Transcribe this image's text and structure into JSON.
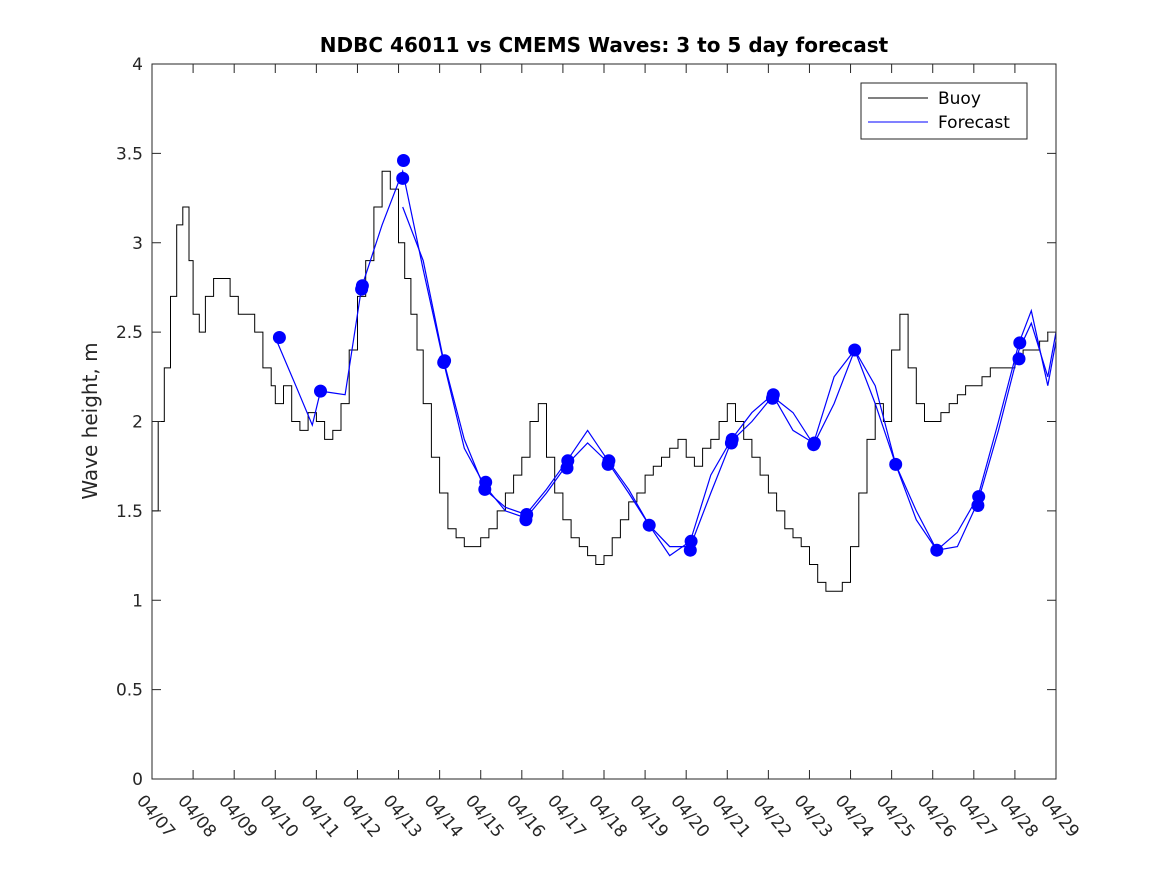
{
  "chart_data": {
    "type": "line",
    "title": "NDBC 46011 vs CMEMS Waves: 3 to 5 day forecast",
    "xlabel": "",
    "ylabel": "Wave height, m",
    "xlim": [
      "04/07",
      "04/29"
    ],
    "ylim": [
      0,
      4
    ],
    "yticks": [
      "0",
      "0.5",
      "1",
      "1.5",
      "2",
      "2.5",
      "3",
      "3.5",
      "4"
    ],
    "xticks": [
      "04/07",
      "04/08",
      "04/09",
      "04/10",
      "04/11",
      "04/12",
      "04/13",
      "04/14",
      "04/15",
      "04/16",
      "04/17",
      "04/18",
      "04/19",
      "04/20",
      "04/21",
      "04/22",
      "04/23",
      "04/24",
      "04/25",
      "04/26",
      "04/27",
      "04/28",
      "04/29"
    ],
    "legend_position": "top-right",
    "grid": false,
    "colors": {
      "buoy": "#000000",
      "forecast": "#0000ff"
    },
    "series": [
      {
        "name": "Buoy",
        "x_days": [
          0,
          0.15,
          0.3,
          0.45,
          0.6,
          0.75,
          0.9,
          1.0,
          1.15,
          1.3,
          1.5,
          1.7,
          1.9,
          2.1,
          2.3,
          2.5,
          2.7,
          2.9,
          3.0,
          3.2,
          3.4,
          3.6,
          3.8,
          4.0,
          4.2,
          4.4,
          4.6,
          4.8,
          5.0,
          5.2,
          5.4,
          5.6,
          5.8,
          6.0,
          6.15,
          6.3,
          6.45,
          6.6,
          6.8,
          7.0,
          7.2,
          7.4,
          7.6,
          7.8,
          8.0,
          8.2,
          8.4,
          8.6,
          8.8,
          9.0,
          9.2,
          9.4,
          9.6,
          9.8,
          10.0,
          10.2,
          10.4,
          10.6,
          10.8,
          11.0,
          11.2,
          11.4,
          11.6,
          11.8,
          12.0,
          12.2,
          12.4,
          12.6,
          12.8,
          13.0,
          13.2,
          13.4,
          13.6,
          13.8,
          14.0,
          14.2,
          14.4,
          14.6,
          14.8,
          15.0,
          15.2,
          15.4,
          15.6,
          15.8,
          16.0,
          16.2,
          16.4,
          16.6,
          16.8,
          17.0,
          17.2,
          17.4,
          17.6,
          17.8,
          18.0,
          18.2,
          18.4,
          18.6,
          18.8,
          19.0,
          19.2,
          19.4,
          19.6,
          19.8,
          20.0,
          20.2,
          20.4,
          20.6,
          20.8,
          21.0,
          21.2,
          21.4,
          21.6,
          21.8
        ],
        "values": [
          1.5,
          2.0,
          2.3,
          2.7,
          3.1,
          3.2,
          2.9,
          2.6,
          2.5,
          2.7,
          2.8,
          2.8,
          2.7,
          2.6,
          2.6,
          2.5,
          2.3,
          2.2,
          2.1,
          2.2,
          2.0,
          1.95,
          2.05,
          2.0,
          1.9,
          1.95,
          2.1,
          2.4,
          2.7,
          2.9,
          3.2,
          3.4,
          3.3,
          3.0,
          2.8,
          2.6,
          2.4,
          2.1,
          1.8,
          1.6,
          1.4,
          1.35,
          1.3,
          1.3,
          1.35,
          1.4,
          1.5,
          1.6,
          1.7,
          1.8,
          2.0,
          2.1,
          1.8,
          1.6,
          1.45,
          1.35,
          1.3,
          1.25,
          1.2,
          1.25,
          1.35,
          1.45,
          1.55,
          1.6,
          1.7,
          1.75,
          1.8,
          1.85,
          1.9,
          1.8,
          1.75,
          1.85,
          1.9,
          2.0,
          2.1,
          2.0,
          1.9,
          1.8,
          1.7,
          1.6,
          1.5,
          1.4,
          1.35,
          1.3,
          1.2,
          1.1,
          1.05,
          1.05,
          1.1,
          1.3,
          1.6,
          1.9,
          2.1,
          2.0,
          2.4,
          2.6,
          2.3,
          2.1,
          2.0,
          2.0,
          2.05,
          2.1,
          2.15,
          2.2,
          2.2,
          2.25,
          2.3,
          2.3,
          2.3,
          2.35,
          2.4,
          2.4,
          2.45,
          2.5
        ]
      },
      {
        "name": "Forecast",
        "markers": [
          [
            3.1,
            2.47
          ],
          [
            4.1,
            2.17
          ],
          [
            5.1,
            2.74
          ],
          [
            5.12,
            2.76
          ],
          [
            6.1,
            3.36
          ],
          [
            6.12,
            3.46
          ],
          [
            7.1,
            2.33
          ],
          [
            7.12,
            2.34
          ],
          [
            8.1,
            1.62
          ],
          [
            8.12,
            1.66
          ],
          [
            9.1,
            1.45
          ],
          [
            9.12,
            1.48
          ],
          [
            10.1,
            1.74
          ],
          [
            10.12,
            1.78
          ],
          [
            11.1,
            1.76
          ],
          [
            11.12,
            1.78
          ],
          [
            12.1,
            1.42
          ],
          [
            13.1,
            1.28
          ],
          [
            13.12,
            1.33
          ],
          [
            14.1,
            1.88
          ],
          [
            14.12,
            1.9
          ],
          [
            15.1,
            2.13
          ],
          [
            15.12,
            2.15
          ],
          [
            16.1,
            1.87
          ],
          [
            16.12,
            1.88
          ],
          [
            17.1,
            2.4
          ],
          [
            18.1,
            1.76
          ],
          [
            19.1,
            1.28
          ],
          [
            20.1,
            1.53
          ],
          [
            20.12,
            1.58
          ],
          [
            21.1,
            2.35
          ],
          [
            21.12,
            2.44
          ]
        ],
        "lines": [
          [
            [
              3.0,
              2.47
            ],
            [
              3.5,
              2.2
            ],
            [
              3.9,
              1.98
            ],
            [
              4.1,
              2.17
            ],
            [
              4.7,
              2.15
            ],
            [
              5.1,
              2.75
            ],
            [
              5.6,
              3.1
            ],
            [
              6.1,
              3.4
            ],
            [
              6.6,
              2.85
            ],
            [
              7.1,
              2.33
            ],
            [
              7.6,
              1.85
            ],
            [
              8.1,
              1.64
            ],
            [
              8.6,
              1.5
            ],
            [
              9.1,
              1.46
            ],
            [
              9.6,
              1.6
            ],
            [
              10.1,
              1.76
            ],
            [
              10.6,
              1.88
            ],
            [
              11.1,
              1.77
            ],
            [
              11.6,
              1.6
            ],
            [
              12.1,
              1.42
            ],
            [
              12.6,
              1.3
            ],
            [
              13.1,
              1.3
            ],
            [
              13.6,
              1.6
            ],
            [
              14.1,
              1.89
            ],
            [
              14.6,
              2.0
            ],
            [
              15.1,
              2.14
            ],
            [
              15.6,
              2.05
            ],
            [
              16.1,
              1.87
            ],
            [
              16.6,
              2.1
            ],
            [
              17.1,
              2.4
            ],
            [
              17.6,
              2.2
            ],
            [
              18.1,
              1.76
            ],
            [
              18.6,
              1.5
            ],
            [
              19.1,
              1.28
            ],
            [
              19.6,
              1.3
            ],
            [
              20.1,
              1.55
            ],
            [
              20.6,
              1.95
            ],
            [
              21.1,
              2.4
            ],
            [
              21.4,
              2.55
            ],
            [
              21.8,
              2.25
            ],
            [
              22.0,
              2.5
            ]
          ],
          [
            [
              6.1,
              3.2
            ],
            [
              6.6,
              2.9
            ],
            [
              7.1,
              2.34
            ],
            [
              7.6,
              1.9
            ],
            [
              8.1,
              1.62
            ],
            [
              8.6,
              1.52
            ],
            [
              9.1,
              1.48
            ],
            [
              9.6,
              1.62
            ],
            [
              10.1,
              1.78
            ],
            [
              10.6,
              1.95
            ],
            [
              11.1,
              1.78
            ],
            [
              11.6,
              1.62
            ],
            [
              12.1,
              1.42
            ],
            [
              12.6,
              1.25
            ],
            [
              13.1,
              1.33
            ],
            [
              13.6,
              1.7
            ],
            [
              14.1,
              1.9
            ],
            [
              14.6,
              2.05
            ],
            [
              15.1,
              2.15
            ],
            [
              15.6,
              1.95
            ],
            [
              16.1,
              1.88
            ],
            [
              16.6,
              2.25
            ],
            [
              17.1,
              2.4
            ],
            [
              17.6,
              2.1
            ],
            [
              18.1,
              1.76
            ],
            [
              18.6,
              1.45
            ],
            [
              19.1,
              1.28
            ],
            [
              19.6,
              1.38
            ],
            [
              20.1,
              1.58
            ],
            [
              20.6,
              2.0
            ],
            [
              21.1,
              2.44
            ],
            [
              21.4,
              2.62
            ],
            [
              21.8,
              2.2
            ],
            [
              22.0,
              2.45
            ]
          ]
        ]
      }
    ]
  }
}
